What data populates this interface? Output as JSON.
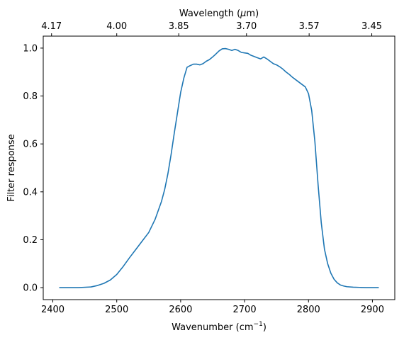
{
  "chart_data": {
    "type": "line",
    "title": "",
    "xlabel": {
      "text": "Wavenumber (cm",
      "sup": "−1",
      "tail": ")"
    },
    "ylabel": "Filter response",
    "top_xlabel": {
      "pre": "Wavelength (",
      "mu": "μ",
      "post": "m)"
    },
    "xlim": [
      2385,
      2935
    ],
    "ylim": [
      -0.05,
      1.05
    ],
    "x_ticks": [
      2400,
      2500,
      2600,
      2700,
      2800,
      2900
    ],
    "x_tick_labels": [
      "2400",
      "2500",
      "2600",
      "2700",
      "2800",
      "2900"
    ],
    "y_ticks": [
      0.0,
      0.2,
      0.4,
      0.6,
      0.8,
      1.0
    ],
    "y_tick_labels": [
      "0.0",
      "0.2",
      "0.4",
      "0.6",
      "0.8",
      "1.0"
    ],
    "top_ticks_wavenumber": [
      2398,
      2500,
      2597,
      2703,
      2801,
      2899
    ],
    "top_tick_labels": [
      "4.17",
      "4.00",
      "3.85",
      "3.70",
      "3.57",
      "3.45"
    ],
    "grid": false,
    "series": [
      {
        "color": "#1f77b4",
        "x": [
          2410,
          2440,
          2460,
          2470,
          2480,
          2490,
          2500,
          2510,
          2520,
          2530,
          2540,
          2550,
          2560,
          2570,
          2575,
          2580,
          2585,
          2590,
          2595,
          2600,
          2605,
          2610,
          2615,
          2620,
          2625,
          2630,
          2635,
          2640,
          2645,
          2650,
          2655,
          2660,
          2665,
          2670,
          2675,
          2680,
          2685,
          2690,
          2695,
          2700,
          2705,
          2710,
          2715,
          2720,
          2725,
          2730,
          2735,
          2740,
          2745,
          2750,
          2755,
          2760,
          2765,
          2770,
          2775,
          2780,
          2785,
          2790,
          2795,
          2800,
          2805,
          2810,
          2815,
          2820,
          2825,
          2830,
          2835,
          2840,
          2845,
          2850,
          2855,
          2860,
          2870,
          2880,
          2890,
          2900,
          2910
        ],
        "y": [
          0.0,
          0.0,
          0.003,
          0.009,
          0.018,
          0.032,
          0.055,
          0.088,
          0.125,
          0.16,
          0.195,
          0.23,
          0.285,
          0.36,
          0.41,
          0.475,
          0.555,
          0.645,
          0.73,
          0.815,
          0.875,
          0.92,
          0.927,
          0.933,
          0.933,
          0.93,
          0.935,
          0.945,
          0.952,
          0.963,
          0.975,
          0.988,
          0.997,
          0.998,
          0.995,
          0.99,
          0.995,
          0.99,
          0.982,
          0.98,
          0.978,
          0.97,
          0.965,
          0.96,
          0.955,
          0.963,
          0.955,
          0.945,
          0.935,
          0.93,
          0.922,
          0.912,
          0.9,
          0.89,
          0.878,
          0.868,
          0.858,
          0.848,
          0.838,
          0.81,
          0.74,
          0.61,
          0.43,
          0.27,
          0.16,
          0.1,
          0.06,
          0.035,
          0.02,
          0.011,
          0.007,
          0.004,
          0.002,
          0.001,
          0.0,
          0.0,
          0.0
        ]
      }
    ]
  }
}
